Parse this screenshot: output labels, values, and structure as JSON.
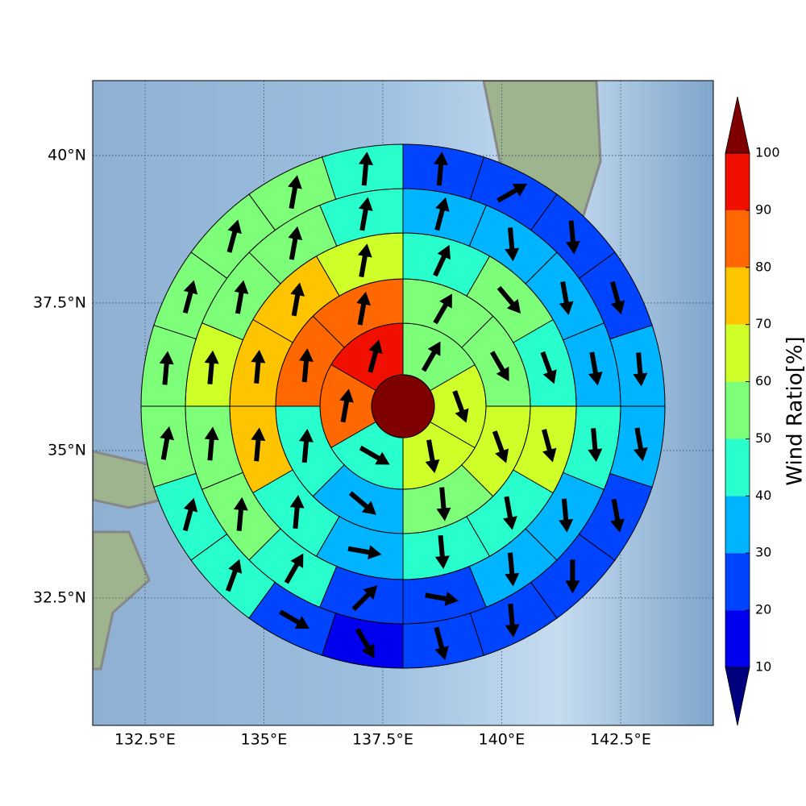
{
  "chart_data": {
    "type": "polar-sector-map",
    "xlim": [
      131.4,
      144.45
    ],
    "ylim": [
      30.34,
      41.27
    ],
    "xticks": [
      {
        "value": 132.5,
        "label": "132.5°E"
      },
      {
        "value": 135,
        "label": "135°E"
      },
      {
        "value": 137.5,
        "label": "137.5°E"
      },
      {
        "value": 140,
        "label": "140°E"
      },
      {
        "value": 142.5,
        "label": "142.5°E"
      }
    ],
    "yticks": [
      {
        "value": 32.5,
        "label": "32.5°N"
      },
      {
        "value": 35,
        "label": "35°N"
      },
      {
        "value": 37.5,
        "label": "37.5°N"
      },
      {
        "value": 40,
        "label": "40°N"
      }
    ],
    "grid": true,
    "center_value": 105,
    "rings": [
      {
        "values": [
          95,
          85,
          45,
          65,
          65,
          55
        ],
        "directions": [
          15,
          10,
          120,
          170,
          160,
          30
        ]
      },
      {
        "values": [
          85,
          85,
          45,
          35,
          55,
          65,
          55,
          55
        ],
        "directions": [
          10,
          5,
          5,
          130,
          175,
          160,
          150,
          30
        ]
      },
      {
        "values": [
          65,
          75,
          75,
          75,
          45,
          35,
          45,
          45,
          65,
          45,
          55,
          45
        ],
        "directions": [
          10,
          10,
          5,
          5,
          5,
          100,
          175,
          170,
          165,
          160,
          140,
          25
        ]
      },
      {
        "values": [
          45,
          55,
          55,
          65,
          55,
          55,
          45,
          25,
          25,
          35,
          35,
          45,
          35,
          35,
          35,
          35
        ],
        "directions": [
          10,
          10,
          10,
          5,
          5,
          5,
          30,
          45,
          100,
          175,
          175,
          175,
          170,
          170,
          175,
          15
        ]
      },
      {
        "values": [
          45,
          55,
          55,
          55,
          55,
          55,
          45,
          45,
          25,
          15,
          25,
          25,
          25,
          25,
          35,
          35,
          25,
          25,
          25,
          25
        ],
        "directions": [
          5,
          10,
          15,
          15,
          5,
          10,
          15,
          20,
          120,
          150,
          165,
          175,
          180,
          170,
          170,
          175,
          165,
          175,
          60,
          5
        ]
      }
    ],
    "colorbar": {
      "label": "Wind Ratio[%]",
      "levels": [
        10,
        20,
        30,
        40,
        50,
        60,
        70,
        80,
        90,
        100
      ],
      "colors": [
        "#0000ee",
        "#0044ff",
        "#00b4ff",
        "#29ffcd",
        "#7dff7a",
        "#ceff29",
        "#ffc400",
        "#ff6800",
        "#f00f00"
      ],
      "under": "#00007f",
      "over": "#7f0000"
    }
  }
}
